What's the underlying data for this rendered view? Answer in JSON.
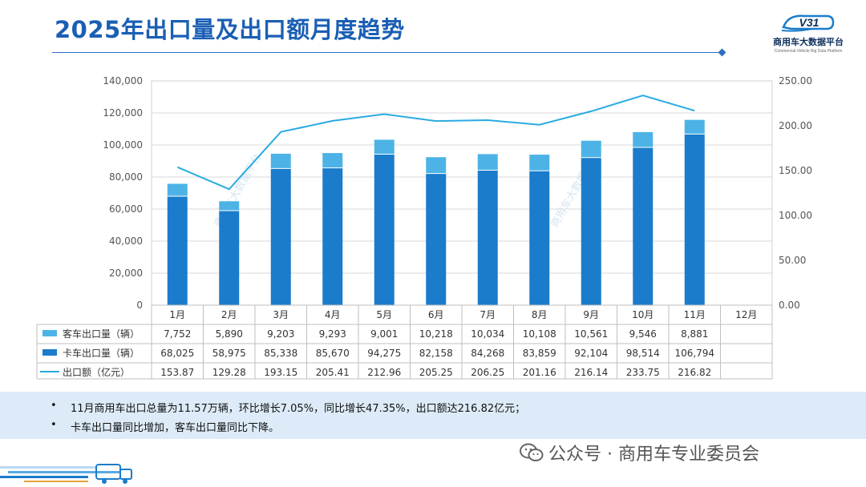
{
  "header": {
    "title": "2025年出口量及出口额月度趋势"
  },
  "logo": {
    "mark_text": "V31",
    "name": "商用车大数据平台",
    "subtitle": "Commercial Vehicle Big Data Platform"
  },
  "chart_data": {
    "type": "bar+line",
    "categories": [
      "1月",
      "2月",
      "3月",
      "4月",
      "5月",
      "6月",
      "7月",
      "8月",
      "9月",
      "10月",
      "11月",
      "12月"
    ],
    "series": [
      {
        "name": "客车出口量（辆）",
        "kind": "stacked-bar",
        "color": "#4db3e6",
        "values": [
          7752,
          5890,
          9203,
          9293,
          9001,
          10218,
          10034,
          10108,
          10561,
          9546,
          8881,
          null
        ],
        "labels": [
          "7,752",
          "5,890",
          "9,203",
          "9,293",
          "9,001",
          "10,218",
          "10,034",
          "10,108",
          "10,561",
          "9,546",
          "8,881",
          ""
        ]
      },
      {
        "name": "卡车出口量（辆）",
        "kind": "stacked-bar",
        "color": "#1a7ccb",
        "values": [
          68025,
          58975,
          85338,
          85670,
          94275,
          82158,
          84268,
          83859,
          92104,
          98514,
          106794,
          null
        ],
        "labels": [
          "68,025",
          "58,975",
          "85,338",
          "85,670",
          "94,275",
          "82,158",
          "84,268",
          "83,859",
          "92,104",
          "98,514",
          "106,794",
          ""
        ]
      },
      {
        "name": "出口额（亿元）",
        "kind": "line",
        "axis": "right",
        "color": "#29abe2",
        "values": [
          153.87,
          129.28,
          193.15,
          205.41,
          212.96,
          205.25,
          206.25,
          201.16,
          216.14,
          233.75,
          216.82,
          null
        ],
        "labels": [
          "153.87",
          "129.28",
          "193.15",
          "205.41",
          "212.96",
          "205.25",
          "206.25",
          "201.16",
          "216.14",
          "233.75",
          "216.82",
          ""
        ]
      }
    ],
    "left_axis": {
      "min": 0,
      "max": 140000,
      "step": 20000,
      "tick_labels": [
        "0",
        "20,000",
        "40,000",
        "60,000",
        "80,000",
        "100,000",
        "120,000",
        "140,000"
      ]
    },
    "right_axis": {
      "min": 0,
      "max": 250,
      "step": 50,
      "tick_labels": [
        "0.00",
        "50.00",
        "100.00",
        "150.00",
        "200.00",
        "250.00"
      ]
    },
    "chart_watermark": "商用车大数据平台"
  },
  "summary": {
    "bullet_symbol": "•",
    "lines": [
      "11月商用车出口总量为11.57万辆，环比增长7.05%，同比增长47.35%，出口额达216.82亿元；",
      "卡车出口量同比增加，客车出口量同比下降。"
    ]
  },
  "footer": {
    "watermark": "公众号 · 商用车专业委员会"
  },
  "colors": {
    "title": "#1a5fb4",
    "bus": "#4db3e6",
    "truck": "#1a7ccb",
    "line": "#29abe2",
    "summary_bg": "#dcebf7"
  }
}
